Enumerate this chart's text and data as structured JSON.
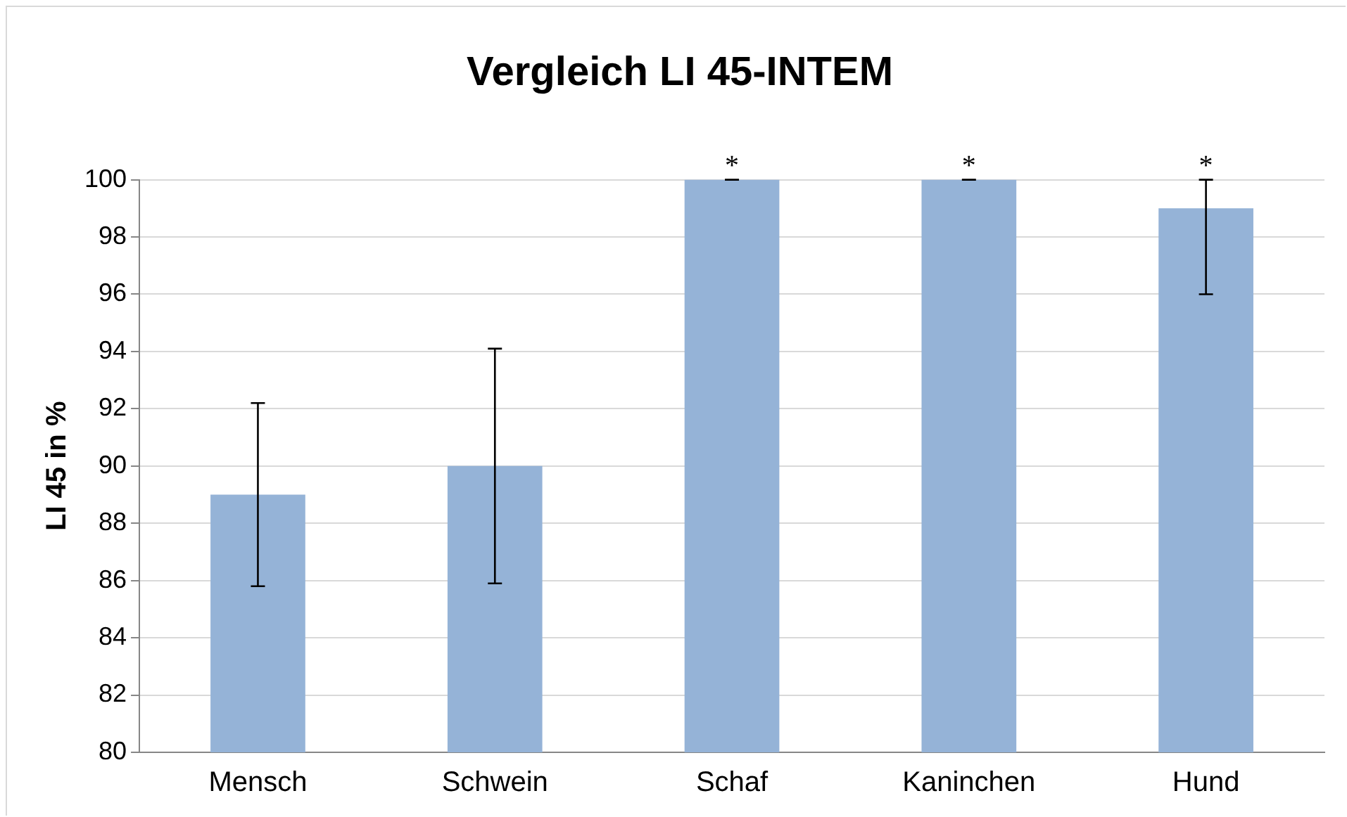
{
  "chart_data": {
    "type": "bar",
    "title": "Vergleich LI 45-INTEM",
    "ylabel": "LI 45 in %",
    "categories": [
      "Mensch",
      "Schwein",
      "Schaf",
      "Kaninchen",
      "Hund"
    ],
    "values": [
      89,
      90,
      100,
      100,
      99
    ],
    "color": "#95b3d7",
    "errors": [
      [
        85.8,
        92.2
      ],
      [
        85.9,
        94.1
      ],
      [
        100,
        100
      ],
      [
        100,
        100
      ],
      [
        96,
        100
      ]
    ],
    "annotations": [
      {
        "text": "*",
        "x": "Schaf",
        "y": 100
      },
      {
        "text": "*",
        "x": "Kaninchen",
        "y": 100
      },
      {
        "text": "*",
        "x": "Hund",
        "y": 100
      }
    ],
    "ylim": [
      80,
      100
    ],
    "yticks": [
      80,
      82,
      84,
      86,
      88,
      90,
      92,
      94,
      96,
      98,
      100
    ],
    "grid": "y",
    "legend": false
  }
}
